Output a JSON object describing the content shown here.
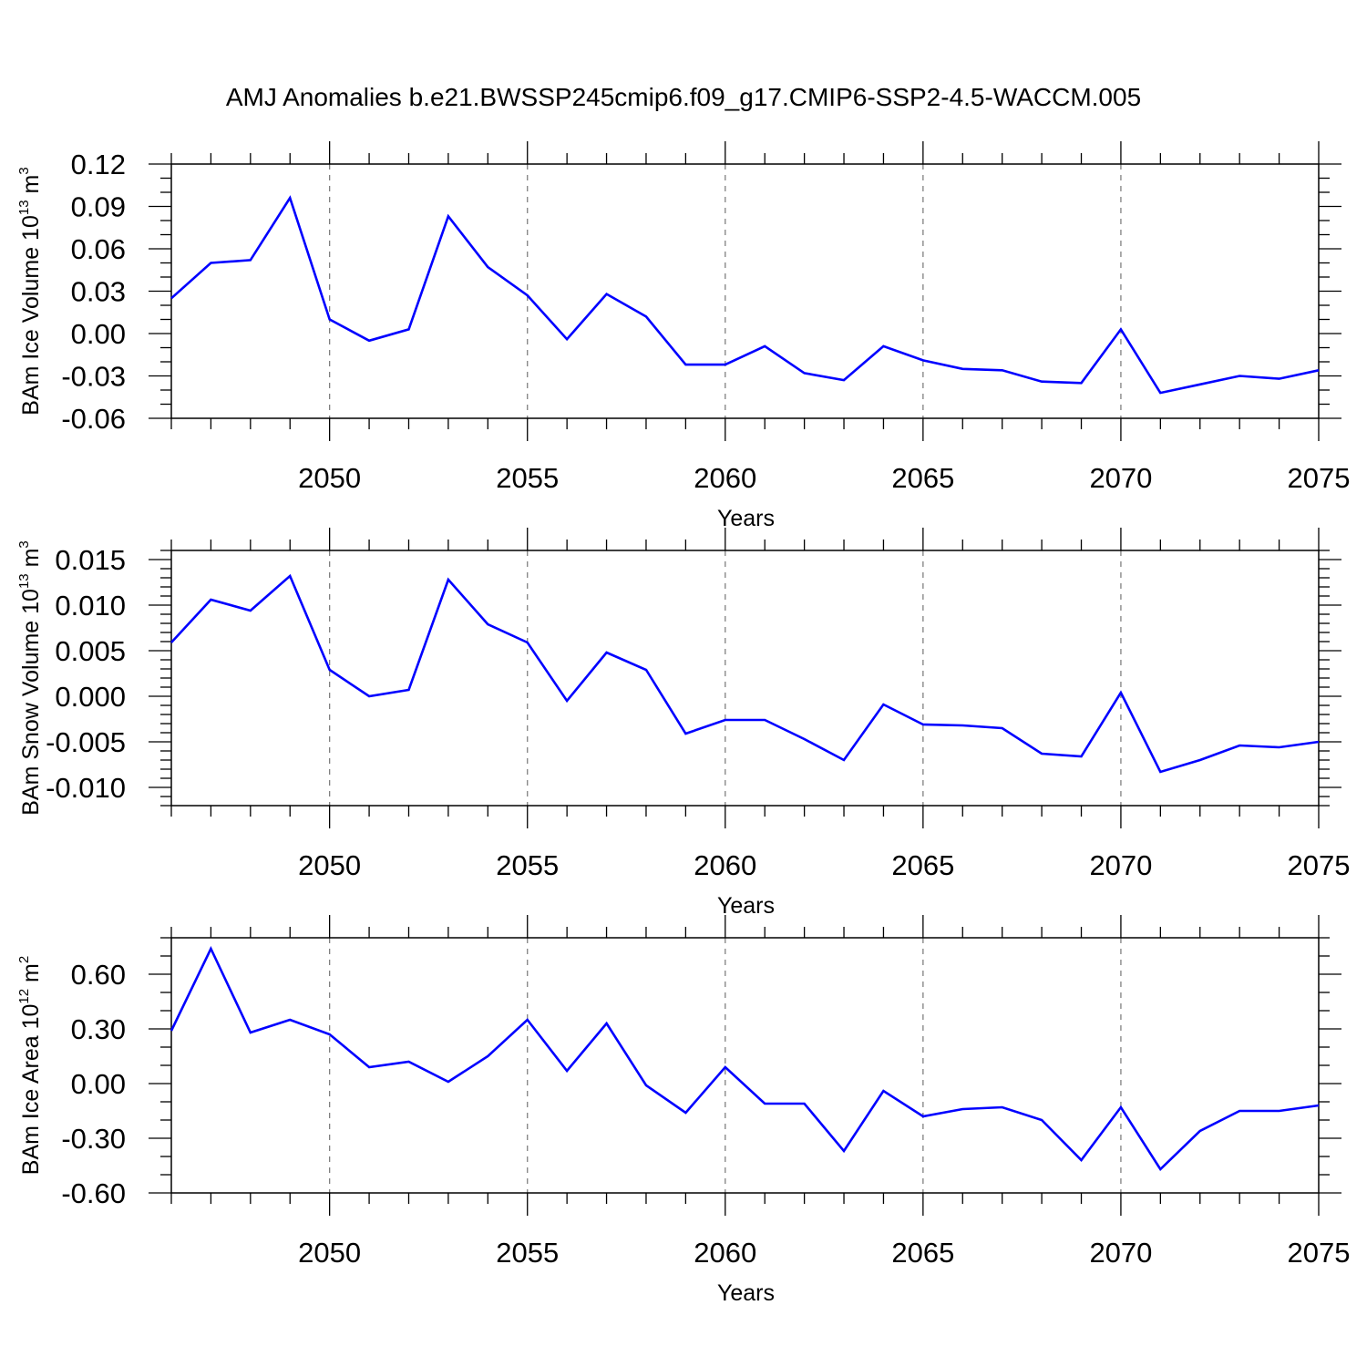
{
  "title": "AMJ Anomalies b.e21.BWSSP245cmip6.f09_g17.CMIP6-SSP2-4.5-WACCM.005",
  "colors": {
    "line": "#0000ff",
    "axis": "#000000",
    "grid": "#808080",
    "background": "#ffffff"
  },
  "chart_data": [
    {
      "type": "line",
      "xlabel": "Years",
      "ylabel": {
        "text": "BAm Ice Volume 10",
        "sup1": "13",
        "mid": " m",
        "sup2": "3"
      },
      "xlim": [
        2046,
        2075
      ],
      "ylim": [
        -0.06,
        0.12
      ],
      "x_ticks": [
        2050,
        2055,
        2060,
        2065,
        2070,
        2075
      ],
      "y_ticks": [
        -0.06,
        -0.03,
        0.0,
        0.03,
        0.06,
        0.09,
        0.12
      ],
      "y_tick_labels": [
        "-0.06",
        "-0.03",
        "0.00",
        "0.03",
        "0.06",
        "0.09",
        "0.12"
      ],
      "y_minor_step": 0.01,
      "grid": "vertical dashed at major x ticks",
      "x": [
        2046,
        2047,
        2048,
        2049,
        2050,
        2051,
        2052,
        2053,
        2054,
        2055,
        2056,
        2057,
        2058,
        2059,
        2060,
        2061,
        2062,
        2063,
        2064,
        2065,
        2066,
        2067,
        2068,
        2069,
        2070,
        2071,
        2072,
        2073,
        2074,
        2075
      ],
      "values": [
        0.025,
        0.05,
        0.052,
        0.096,
        0.01,
        -0.005,
        0.003,
        0.083,
        0.047,
        0.027,
        -0.004,
        0.028,
        0.012,
        -0.022,
        -0.022,
        -0.009,
        -0.028,
        -0.033,
        -0.009,
        -0.019,
        -0.025,
        -0.026,
        -0.034,
        -0.035,
        0.003,
        -0.042,
        -0.036,
        -0.03,
        -0.032,
        -0.026
      ]
    },
    {
      "type": "line",
      "xlabel": "Years",
      "ylabel": {
        "text": "BAm Snow Volume 10",
        "sup1": "13",
        "mid": " m",
        "sup2": "3"
      },
      "xlim": [
        2046,
        2075
      ],
      "ylim": [
        -0.012,
        0.016
      ],
      "x_ticks": [
        2050,
        2055,
        2060,
        2065,
        2070,
        2075
      ],
      "y_ticks": [
        -0.01,
        -0.005,
        0.0,
        0.005,
        0.01,
        0.015
      ],
      "y_tick_labels": [
        "-0.010",
        "-0.005",
        "0.000",
        "0.005",
        "0.010",
        "0.015"
      ],
      "y_minor_step": 0.001,
      "grid": "vertical dashed at major x ticks",
      "x": [
        2046,
        2047,
        2048,
        2049,
        2050,
        2051,
        2052,
        2053,
        2054,
        2055,
        2056,
        2057,
        2058,
        2059,
        2060,
        2061,
        2062,
        2063,
        2064,
        2065,
        2066,
        2067,
        2068,
        2069,
        2070,
        2071,
        2072,
        2073,
        2074,
        2075
      ],
      "values": [
        0.0059,
        0.0106,
        0.0094,
        0.0132,
        0.0029,
        0.0,
        0.0007,
        0.0128,
        0.0079,
        0.0059,
        -0.0005,
        0.0048,
        0.0029,
        -0.0041,
        -0.0026,
        -0.0026,
        -0.0047,
        -0.007,
        -0.0009,
        -0.0031,
        -0.0032,
        -0.0035,
        -0.0063,
        -0.0066,
        0.0004,
        -0.0083,
        -0.007,
        -0.0054,
        -0.0056,
        -0.005
      ]
    },
    {
      "type": "line",
      "xlabel": "Years",
      "ylabel": {
        "text": "BAm Ice Area 10",
        "sup1": "12",
        "mid": " m",
        "sup2": "2"
      },
      "xlim": [
        2046,
        2075
      ],
      "ylim": [
        -0.6,
        0.8
      ],
      "x_ticks": [
        2050,
        2055,
        2060,
        2065,
        2070,
        2075
      ],
      "y_ticks": [
        -0.6,
        -0.3,
        0.0,
        0.3,
        0.6
      ],
      "y_tick_labels": [
        "-0.60",
        "-0.30",
        "0.00",
        "0.30",
        "0.60"
      ],
      "y_minor_step": 0.1,
      "grid": "vertical dashed at major x ticks",
      "x": [
        2046,
        2047,
        2048,
        2049,
        2050,
        2051,
        2052,
        2053,
        2054,
        2055,
        2056,
        2057,
        2058,
        2059,
        2060,
        2061,
        2062,
        2063,
        2064,
        2065,
        2066,
        2067,
        2068,
        2069,
        2070,
        2071,
        2072,
        2073,
        2074,
        2075
      ],
      "values": [
        0.29,
        0.74,
        0.28,
        0.35,
        0.27,
        0.09,
        0.12,
        0.01,
        0.15,
        0.35,
        0.07,
        0.33,
        -0.01,
        -0.16,
        0.09,
        -0.11,
        -0.11,
        -0.37,
        -0.04,
        -0.18,
        -0.14,
        -0.13,
        -0.2,
        -0.42,
        -0.13,
        -0.47,
        -0.26,
        -0.15,
        -0.15,
        -0.12
      ]
    }
  ]
}
